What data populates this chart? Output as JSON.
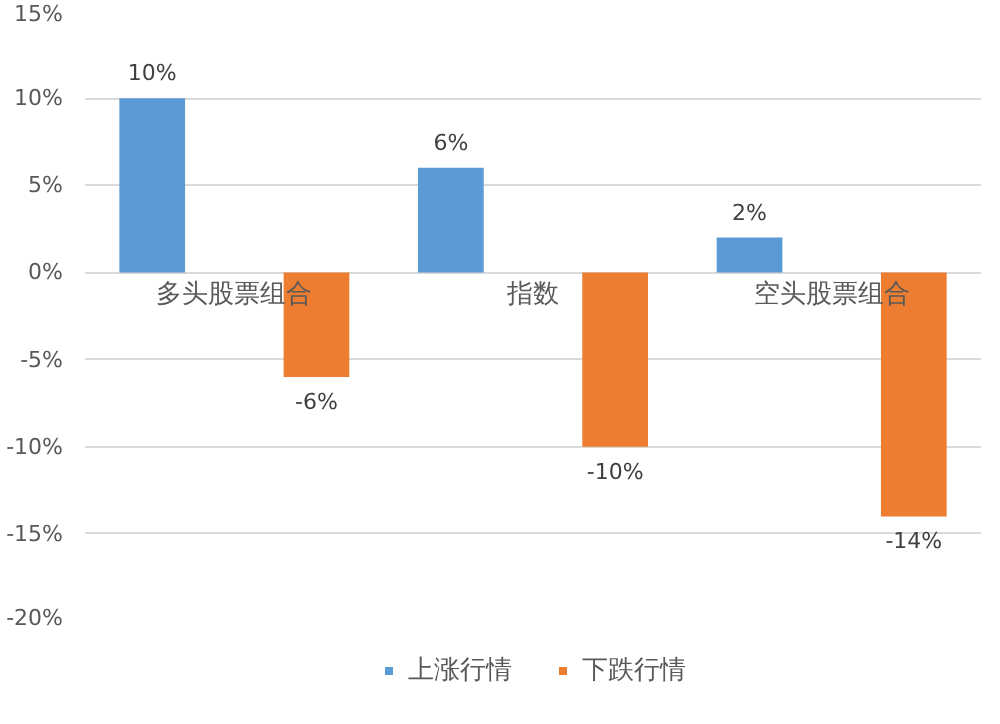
{
  "chart_data": {
    "type": "bar",
    "categories": [
      "多头股票组合",
      "指数",
      "空头股票组合"
    ],
    "series": [
      {
        "name": "上涨行情",
        "color": "#5b9bd5",
        "values": [
          10,
          6,
          2
        ],
        "value_labels": [
          "10%",
          "6%",
          "2%"
        ]
      },
      {
        "name": "下跌行情",
        "color": "#ed7d31",
        "values": [
          -6,
          -10,
          -14
        ],
        "value_labels": [
          "-6%",
          "-10%",
          "-14%"
        ]
      }
    ],
    "ylim": [
      -20,
      15
    ],
    "yticks": [
      {
        "value": -20,
        "label": "-20%"
      },
      {
        "value": -15,
        "label": "-15%"
      },
      {
        "value": -10,
        "label": "-10%"
      },
      {
        "value": -5,
        "label": "-5%"
      },
      {
        "value": 0,
        "label": "0%"
      },
      {
        "value": 5,
        "label": "5%"
      },
      {
        "value": 10,
        "label": "10%"
      },
      {
        "value": 15,
        "label": "15%"
      }
    ],
    "grid": "y",
    "legend": "bottom"
  }
}
